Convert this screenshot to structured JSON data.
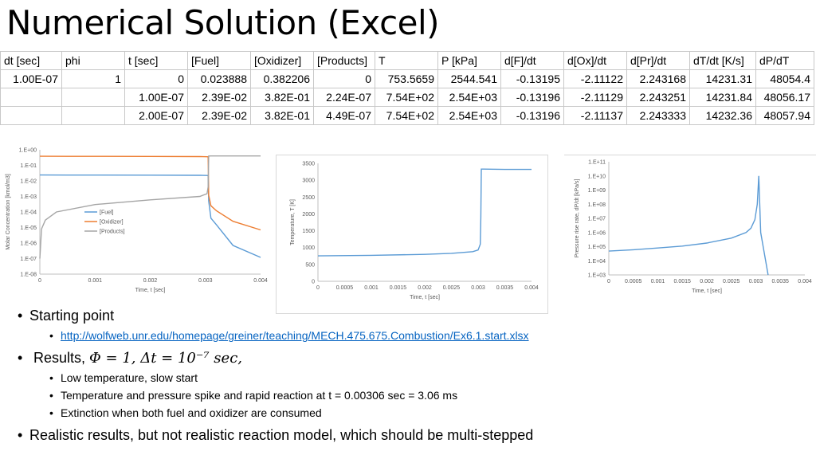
{
  "title": "Numerical Solution (Excel)",
  "table": {
    "headers": [
      "dt [sec]",
      "phi",
      "t [sec]",
      "[Fuel]",
      "[Oxidizer]",
      "[Products]",
      "T",
      "P [kPa]",
      "d[F]/dt",
      "d[Ox]/dt",
      "d[Pr]/dt",
      "dT/dt [K/s]",
      "dP/dT"
    ],
    "rows": [
      [
        "1.00E-07",
        "1",
        "0",
        "0.023888",
        "0.382206",
        "0",
        "753.5659",
        "2544.541",
        "-0.13195",
        "-2.11122",
        "2.243168",
        "14231.31",
        "48054.4"
      ],
      [
        "",
        "",
        "1.00E-07",
        "2.39E-02",
        "3.82E-01",
        "2.24E-07",
        "7.54E+02",
        "2.54E+03",
        "-0.13196",
        "-2.11129",
        "2.243251",
        "14231.84",
        "48056.17"
      ],
      [
        "",
        "",
        "2.00E-07",
        "2.39E-02",
        "3.82E-01",
        "4.49E-07",
        "7.54E+02",
        "2.54E+03",
        "-0.13196",
        "-2.11137",
        "2.243333",
        "14232.36",
        "48057.94"
      ]
    ]
  },
  "chart_data": [
    {
      "type": "line",
      "title": "",
      "xlabel": "Time, t [sec]",
      "ylabel": "Molar Concentration [kmol/m3]",
      "yscale": "log",
      "xlim": [
        0,
        0.004
      ],
      "ylim": [
        1e-08,
        1
      ],
      "xticks": [
        "0",
        "0.001",
        "0.002",
        "0.003",
        "0.004"
      ],
      "yticks": [
        "1.E+00",
        "1.E-01",
        "1.E-02",
        "1.E-03",
        "1.E-04",
        "1.E-05",
        "1.E-06",
        "1.E-07",
        "1.E-08"
      ],
      "legend_position": "center-left",
      "series": [
        {
          "name": "[Fuel]",
          "color": "#5b9bd5",
          "x": [
            0,
            0.0005,
            0.001,
            0.002,
            0.0029,
            0.00303,
            0.00305,
            0.00306,
            0.0031,
            0.0032,
            0.0035,
            0.004
          ],
          "y": [
            0.0239,
            0.0238,
            0.0237,
            0.0233,
            0.0228,
            0.0224,
            0.0221,
            0.0005,
            4e-05,
            1.5e-05,
            7e-07,
            1.2e-07
          ]
        },
        {
          "name": "[Oxidizer]",
          "color": "#ed7d31",
          "x": [
            0,
            0.0005,
            0.001,
            0.002,
            0.0029,
            0.00303,
            0.00305,
            0.00306,
            0.0031,
            0.0032,
            0.0035,
            0.004
          ],
          "y": [
            0.382,
            0.381,
            0.379,
            0.374,
            0.366,
            0.36,
            0.355,
            0.0012,
            0.00025,
            0.00012,
            2.5e-05,
            7e-06
          ]
        },
        {
          "name": "[Products]",
          "color": "#a5a5a5",
          "x": [
            0,
            3e-05,
            0.0001,
            0.0003,
            0.001,
            0.002,
            0.0029,
            0.00303,
            0.00305,
            0.00306,
            0.0031,
            0.004
          ],
          "y": [
            1e-07,
            8e-06,
            3e-05,
            0.0001,
            0.0003,
            0.0006,
            0.001,
            0.0015,
            0.004,
            0.4,
            0.405,
            0.405
          ]
        }
      ]
    },
    {
      "type": "line",
      "title": "",
      "xlabel": "Time, t [sec]",
      "ylabel": "Temperature, T [K]",
      "xlim": [
        0,
        0.004
      ],
      "ylim": [
        0,
        3500
      ],
      "xticks": [
        "0",
        "0.0005",
        "0.001",
        "0.0015",
        "0.002",
        "0.0025",
        "0.003",
        "0.0035",
        "0.004"
      ],
      "yticks": [
        "0",
        "500",
        "1000",
        "1500",
        "2000",
        "2500",
        "3000",
        "3500"
      ],
      "series": [
        {
          "name": "",
          "color": "#5b9bd5",
          "x": [
            0,
            0.001,
            0.002,
            0.0025,
            0.0029,
            0.003,
            0.00304,
            0.00305,
            0.00306,
            0.0031,
            0.0035,
            0.004
          ],
          "y": [
            754,
            770,
            800,
            830,
            880,
            930,
            1100,
            1900,
            3330,
            3330,
            3320,
            3320
          ]
        }
      ]
    },
    {
      "type": "line",
      "title": "",
      "xlabel": "Time, t [sec]",
      "ylabel": "Pressure rise rate, dP/dt [kPa/s]",
      "yscale": "log",
      "xlim": [
        0,
        0.004
      ],
      "ylim": [
        1000,
        100000000000.0
      ],
      "xticks": [
        "0",
        "0.0005",
        "0.001",
        "0.0015",
        "0.002",
        "0.0025",
        "0.003",
        "0.0035",
        "0.004"
      ],
      "yticks": [
        "1.E+11",
        "1.E+10",
        "1.E+09",
        "1.E+08",
        "1.E+07",
        "1.E+06",
        "1.E+05",
        "1.E+04",
        "1.E+03"
      ],
      "series": [
        {
          "name": "",
          "color": "#5b9bd5",
          "x": [
            0,
            0.0005,
            0.001,
            0.0015,
            0.002,
            0.0025,
            0.0028,
            0.0029,
            0.00298,
            0.00303,
            0.00306,
            0.0031,
            0.0032,
            0.00325
          ],
          "y": [
            48054,
            60000,
            80000,
            110000,
            180000,
            400000,
            1000000,
            2000000,
            8000000,
            100000000,
            10000000000,
            1000000,
            10000,
            1000
          ]
        }
      ]
    }
  ],
  "bullets": {
    "starting_point": "Starting point",
    "link": "http://wolfweb.unr.edu/homepage/greiner/teaching/MECH.475.675.Combustion/Ex6.1.start.xlsx",
    "results_prefix": "Results, ",
    "results_math": "Φ = 1, Δt = 10⁻⁷ sec,",
    "sub_low_temp": "Low temperature, slow start",
    "sub_spike": "Temperature and pressure spike and rapid reaction at t = 0.00306 sec = 3.06 ms",
    "sub_extinction": "Extinction when both fuel and oxidizer are consumed",
    "realistic": "Realistic results, but not realistic reaction model, which should be multi-stepped"
  }
}
